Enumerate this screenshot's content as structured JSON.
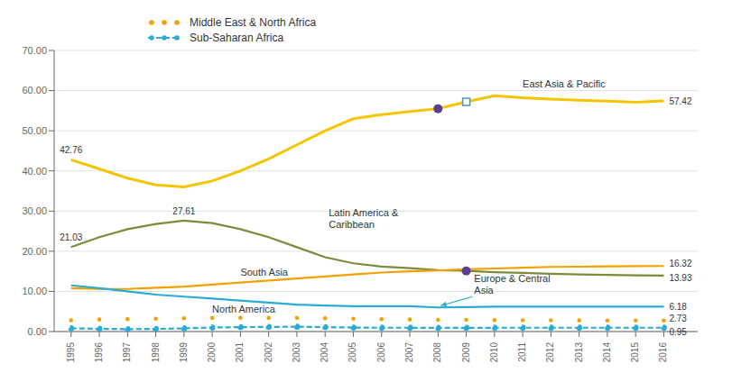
{
  "chart_data": {
    "type": "line",
    "x": [
      1995,
      1996,
      1997,
      1998,
      1999,
      2000,
      2001,
      2002,
      2003,
      2004,
      2005,
      2006,
      2007,
      2008,
      2009,
      2010,
      2011,
      2012,
      2013,
      2014,
      2015,
      2016
    ],
    "xlim": [
      1994.4,
      2017.2
    ],
    "xticks": [
      1995,
      1996,
      1997,
      1998,
      1999,
      2000,
      2001,
      2002,
      2003,
      2004,
      2005,
      2006,
      2007,
      2008,
      2009,
      2010,
      2011,
      2012,
      2013,
      2014,
      2015,
      2016
    ],
    "ylim": [
      0,
      70
    ],
    "yticks": [
      {
        "value": 0,
        "label": "0.00"
      },
      {
        "value": 10,
        "label": "10.00"
      },
      {
        "value": 20,
        "label": "20.00"
      },
      {
        "value": 30,
        "label": "30.00"
      },
      {
        "value": 40,
        "label": "40.00"
      },
      {
        "value": 50,
        "label": "50.00"
      },
      {
        "value": 60,
        "label": "60.00"
      },
      {
        "value": 70,
        "label": "70.00"
      }
    ],
    "grid": true,
    "legend": "upper left",
    "series": [
      {
        "name": "East Asia & Pacific",
        "color": "#F5C400",
        "line_style": "solid",
        "values": [
          42.76,
          40.5,
          38.2,
          36.5,
          36.0,
          37.5,
          40.0,
          43.0,
          46.5,
          50.0,
          53.0,
          54.0,
          54.8,
          55.5,
          57.2,
          58.7,
          58.2,
          57.9,
          57.6,
          57.4,
          57.1,
          57.42
        ]
      },
      {
        "name": "Latin America &\nCaribbean",
        "color": "#7B8B3A",
        "line_style": "solid",
        "values": [
          21.03,
          23.5,
          25.5,
          26.8,
          27.61,
          27.0,
          25.5,
          23.5,
          21.0,
          18.5,
          17.0,
          16.2,
          15.8,
          15.3,
          15.1,
          14.8,
          14.6,
          14.4,
          14.2,
          14.1,
          14.0,
          13.93
        ]
      },
      {
        "name": "South Asia",
        "color": "#F5A000",
        "line_style": "solid",
        "values": [
          10.8,
          10.6,
          10.6,
          10.9,
          11.2,
          11.7,
          12.2,
          12.7,
          13.2,
          13.7,
          14.2,
          14.7,
          15.0,
          15.2,
          15.5,
          15.7,
          15.9,
          16.1,
          16.15,
          16.22,
          16.28,
          16.32
        ]
      },
      {
        "name": "North America",
        "color": "#29ABD4",
        "line_style": "solid",
        "values": [
          11.5,
          10.8,
          10.0,
          9.2,
          8.7,
          8.2,
          7.7,
          7.2,
          6.7,
          6.5,
          6.3,
          6.3,
          6.3,
          6.0,
          6.1,
          6.2,
          6.2,
          6.2,
          6.2,
          6.2,
          6.2,
          6.18
        ]
      },
      {
        "name": "Middle East & North Africa",
        "color": "#F5A000",
        "line_style": "none",
        "marker": "o",
        "values": [
          2.8,
          3.0,
          3.1,
          3.2,
          3.3,
          3.4,
          3.4,
          3.4,
          3.4,
          3.3,
          3.2,
          3.1,
          3.0,
          2.9,
          2.9,
          2.85,
          2.82,
          2.79,
          2.77,
          2.76,
          2.74,
          2.73
        ]
      },
      {
        "name": "Sub-Saharan Africa",
        "color": "#29ABD4",
        "line_style": "dashed",
        "marker": "o",
        "values": [
          0.8,
          0.7,
          0.6,
          0.65,
          0.8,
          1.0,
          1.1,
          1.15,
          1.2,
          1.1,
          1.0,
          0.95,
          0.95,
          0.92,
          0.93,
          0.95,
          0.95,
          0.95,
          0.95,
          0.95,
          0.95,
          0.95
        ]
      }
    ],
    "highlights": [
      {
        "x": 2008,
        "y": 55.5,
        "marker": "o",
        "color": "#5B3F8C"
      },
      {
        "x": 2009,
        "y": 57.2,
        "marker": "s",
        "color": "#5B8FB0"
      },
      {
        "x": 2009,
        "y": 15.1,
        "marker": "o",
        "color": "#5B3F8C"
      }
    ],
    "annotations": [
      {
        "text": "57.42",
        "x": 2016,
        "y": 57.42
      },
      {
        "text": "16.32",
        "x": 2016,
        "y": 16.32
      },
      {
        "text": "13.93",
        "x": 2016,
        "y": 13.93
      },
      {
        "text": "6.18",
        "x": 2016,
        "y": 6.18
      },
      {
        "text": "2.73",
        "x": 2016,
        "y": 2.73
      },
      {
        "text": "0.95",
        "x": 2016,
        "y": 0.95
      },
      {
        "text": "42.76",
        "x": 1995,
        "y": 42.76
      },
      {
        "text": "21.03",
        "x": 1995,
        "y": 21.03
      },
      {
        "text": "27.61",
        "x": 1999,
        "y": 27.61
      }
    ],
    "callouts": [
      {
        "text": "Europe & Central\nAsia",
        "x": 2008,
        "y": 6.0
      }
    ]
  }
}
